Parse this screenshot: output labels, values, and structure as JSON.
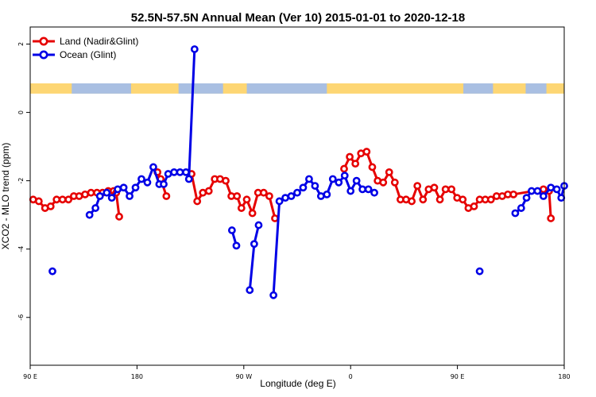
{
  "chart_data": {
    "type": "line",
    "title": "52.5N-57.5N Annual Mean (Ver 10)   2015-01-01 to 2020-12-18",
    "xlabel": "Longitude (deg E)",
    "ylabel": "XCO2 - MLO trend (ppm)",
    "xlim": [
      90,
      270
    ],
    "ylim": [
      -7.4,
      2.5
    ],
    "xticks": [
      {
        "value": 90,
        "label": "90 E"
      },
      {
        "value": 126,
        "label": "180"
      },
      {
        "value": 162,
        "label": "90 W"
      },
      {
        "value": 198,
        "label": "0"
      },
      {
        "value": 234,
        "label": "90 E"
      },
      {
        "value": 270,
        "label": "180"
      }
    ],
    "yticks": [
      2,
      0,
      -2,
      -4,
      -6
    ],
    "legend_position": "top-left",
    "grid": false,
    "land_band": {
      "y_from": 0.55,
      "y_to": 0.85,
      "land_color": "#fdd674",
      "ocean_color": "#a9bfe2"
    },
    "series": [
      {
        "name": "Land (Nadir&Glint)",
        "color": "#e60000",
        "points": [
          [
            91.0,
            -2.55
          ],
          [
            92.9,
            -2.6
          ],
          [
            95.0,
            -2.8
          ],
          [
            96.9,
            -2.75
          ],
          [
            98.9,
            -2.55
          ],
          [
            100.9,
            -2.55
          ],
          [
            102.9,
            -2.55
          ],
          [
            104.7,
            -2.45
          ],
          [
            106.5,
            -2.45
          ],
          [
            108.5,
            -2.4
          ],
          [
            110.5,
            -2.35
          ],
          [
            112.5,
            -2.35
          ],
          [
            114.4,
            -2.35
          ],
          [
            116.3,
            -2.3
          ],
          [
            118.1,
            -2.3
          ],
          [
            119.0,
            -2.35
          ],
          [
            120.0,
            -3.05
          ],
          null,
          [
            132.9,
            -1.75
          ],
          [
            134.0,
            -1.95
          ],
          [
            135.9,
            -2.45
          ],
          null,
          [
            144.4,
            -1.8
          ],
          [
            146.3,
            -2.6
          ],
          [
            148.2,
            -2.35
          ],
          [
            150.2,
            -2.3
          ],
          [
            152.2,
            -1.95
          ],
          [
            154.0,
            -1.95
          ],
          [
            155.9,
            -2.0
          ],
          [
            157.8,
            -2.45
          ],
          [
            159.7,
            -2.45
          ],
          [
            161.2,
            -2.8
          ],
          [
            163.0,
            -2.55
          ],
          [
            164.9,
            -2.95
          ],
          [
            166.8,
            -2.35
          ],
          [
            168.7,
            -2.35
          ],
          [
            170.6,
            -2.45
          ],
          [
            172.5,
            -3.1
          ],
          null,
          [
            195.8,
            -1.65
          ],
          [
            197.7,
            -1.3
          ],
          [
            199.6,
            -1.5
          ],
          [
            201.5,
            -1.2
          ],
          [
            203.4,
            -1.15
          ],
          [
            205.3,
            -1.6
          ],
          [
            207.1,
            -2.0
          ],
          [
            209.0,
            -2.05
          ],
          [
            211.0,
            -1.75
          ],
          [
            212.9,
            -2.05
          ],
          [
            214.8,
            -2.55
          ],
          [
            216.7,
            -2.55
          ],
          [
            218.6,
            -2.6
          ],
          [
            220.5,
            -2.15
          ],
          [
            222.4,
            -2.55
          ],
          [
            224.3,
            -2.25
          ],
          [
            226.2,
            -2.2
          ],
          [
            228.1,
            -2.55
          ],
          [
            230.0,
            -2.25
          ],
          [
            232.0,
            -2.25
          ],
          [
            233.9,
            -2.5
          ],
          [
            235.8,
            -2.55
          ],
          [
            237.7,
            -2.8
          ],
          [
            239.6,
            -2.75
          ],
          [
            241.5,
            -2.55
          ],
          [
            243.4,
            -2.55
          ],
          [
            245.3,
            -2.55
          ],
          [
            247.2,
            -2.45
          ],
          [
            249.1,
            -2.45
          ],
          [
            251.0,
            -2.4
          ],
          [
            252.9,
            -2.4
          ],
          [
            263.0,
            -2.25
          ],
          [
            264.9,
            -2.3
          ],
          [
            265.5,
            -3.1
          ]
        ]
      },
      {
        "name": "Ocean (Glint)",
        "color": "#0000e6",
        "points": [
          [
            97.5,
            -4.65
          ],
          null,
          [
            110.0,
            -3.0
          ],
          [
            112.0,
            -2.8
          ],
          [
            113.5,
            -2.45
          ],
          [
            115.8,
            -2.35
          ],
          [
            117.5,
            -2.5
          ],
          [
            119.5,
            -2.25
          ],
          [
            121.5,
            -2.2
          ],
          [
            123.5,
            -2.45
          ],
          [
            125.5,
            -2.2
          ],
          [
            127.5,
            -1.95
          ],
          [
            129.5,
            -2.05
          ],
          [
            131.5,
            -1.6
          ],
          [
            133.5,
            -2.1
          ],
          [
            135.0,
            -2.1
          ],
          [
            136.5,
            -1.8
          ],
          [
            138.5,
            -1.75
          ],
          [
            140.5,
            -1.75
          ],
          [
            142.5,
            -1.75
          ],
          [
            143.5,
            -1.95
          ],
          [
            145.4,
            1.85
          ],
          null,
          [
            158.0,
            -3.45
          ],
          [
            159.5,
            -3.9
          ],
          null,
          [
            164.0,
            -5.2
          ],
          [
            165.5,
            -3.85
          ],
          [
            167.0,
            -3.3
          ],
          null,
          [
            172.0,
            -5.35
          ],
          [
            174.0,
            -2.6
          ],
          [
            176.0,
            -2.5
          ],
          [
            178.0,
            -2.45
          ],
          [
            180.0,
            -2.35
          ],
          [
            182.0,
            -2.2
          ],
          [
            184.0,
            -1.95
          ],
          [
            186.0,
            -2.15
          ],
          [
            188.0,
            -2.45
          ],
          [
            190.0,
            -2.4
          ],
          [
            192.0,
            -1.95
          ],
          [
            194.0,
            -2.05
          ],
          [
            196.0,
            -1.85
          ],
          [
            198.0,
            -2.3
          ],
          [
            200.0,
            -2.0
          ],
          [
            202.0,
            -2.25
          ],
          [
            204.0,
            -2.25
          ],
          [
            206.0,
            -2.35
          ],
          null,
          [
            241.5,
            -4.65
          ],
          null,
          [
            253.5,
            -2.95
          ],
          [
            255.5,
            -2.8
          ],
          [
            257.3,
            -2.5
          ],
          [
            259.0,
            -2.3
          ],
          [
            261.0,
            -2.3
          ],
          [
            263.0,
            -2.45
          ],
          [
            265.5,
            -2.2
          ],
          [
            267.5,
            -2.25
          ],
          [
            269.0,
            -2.5
          ],
          [
            270.0,
            -2.15
          ]
        ]
      }
    ]
  }
}
